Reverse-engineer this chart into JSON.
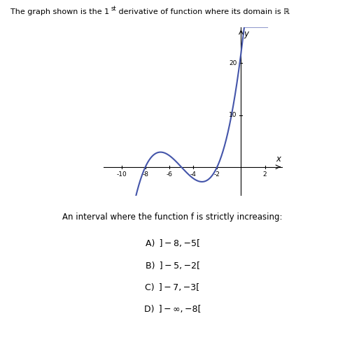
{
  "curve_color": "#4455aa",
  "curve_linewidth": 1.5,
  "xlim": [
    -11.5,
    3.5
  ],
  "ylim": [
    -5.5,
    27
  ],
  "xticks": [
    -10,
    -8,
    -6,
    -4,
    -2,
    2
  ],
  "yticks": [
    10,
    20
  ],
  "xlabel": "x",
  "ylabel": "y",
  "question_text": "An interval where the function f is strictly increasing:",
  "options": [
    "A) ] − 8, −5[",
    "B) ] − 5, −2[",
    "C) ] − 7, −3[",
    "D) ] − ∞, −8["
  ],
  "background_color": "#ffffff",
  "fig_width": 4.93,
  "fig_height": 4.82,
  "dpi": 100
}
